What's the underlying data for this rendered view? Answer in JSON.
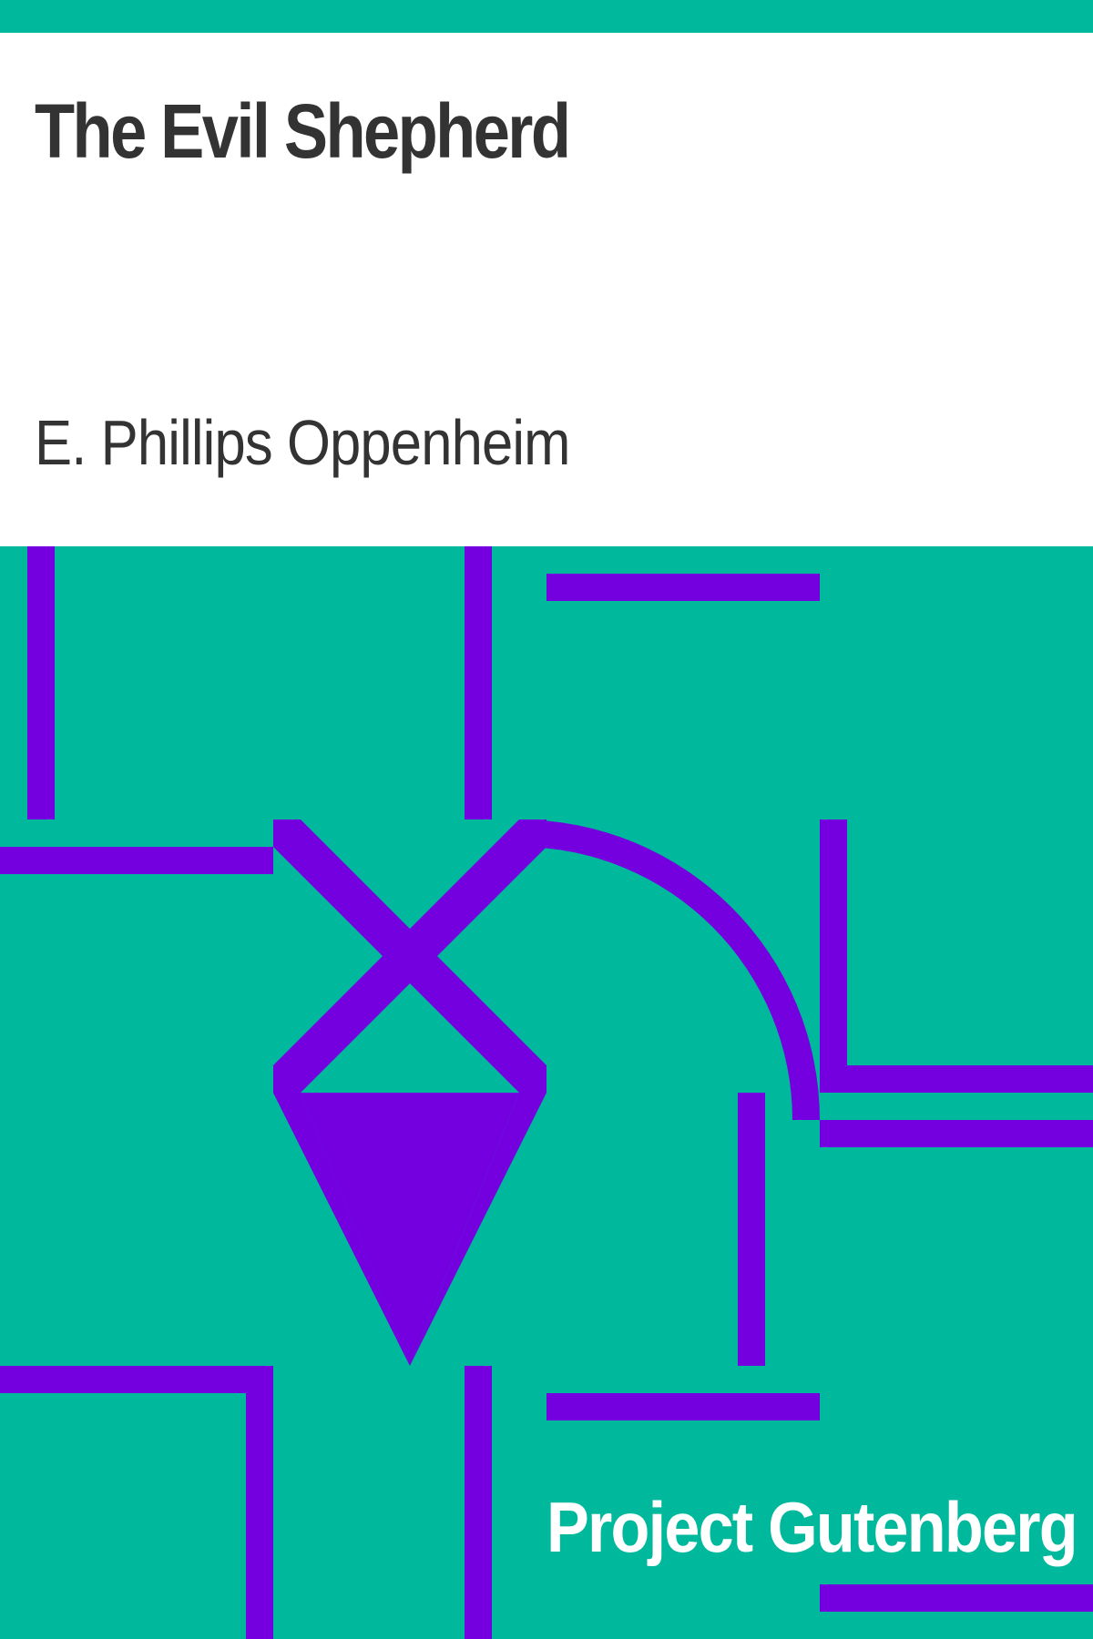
{
  "cover": {
    "title": "The Evil Shepherd",
    "author": "E. Phillips Oppenheim",
    "publisher": "Project Gutenberg"
  },
  "colors": {
    "background": "#00b89c",
    "panel": "#ffffff",
    "text": "#333333",
    "shapes": "#7400e0",
    "publisher_text": "#ffffff"
  }
}
